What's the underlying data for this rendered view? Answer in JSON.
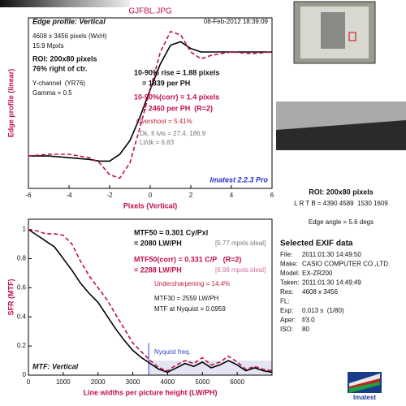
{
  "header": {
    "title": "GJFBL.JPG"
  },
  "chart_data": [
    {
      "type": "line",
      "ylabel": "Edge profile (linear)",
      "xlabel": "Pixels (Vertical)",
      "xlim": [
        -6,
        6
      ],
      "ylim": [
        0,
        1
      ],
      "xticks": [
        -6,
        -4,
        -2,
        0,
        2,
        4,
        6
      ],
      "x": [
        -6,
        -5,
        -4,
        -3,
        -2.5,
        -2,
        -1.5,
        -1,
        -0.5,
        0,
        0.5,
        1,
        1.5,
        2,
        2.5,
        3,
        4,
        5,
        6
      ],
      "series": [
        {
          "color": "#000000",
          "dashed": false,
          "values": [
            0.19,
            0.19,
            0.18,
            0.17,
            0.16,
            0.16,
            0.2,
            0.28,
            0.42,
            0.58,
            0.73,
            0.84,
            0.86,
            0.82,
            0.8,
            0.8,
            0.8,
            0.8,
            0.8
          ]
        },
        {
          "color": "#c0104a",
          "dashed": true,
          "values": [
            0.19,
            0.2,
            0.2,
            0.18,
            0.15,
            0.08,
            0.06,
            0.15,
            0.36,
            0.58,
            0.8,
            0.92,
            0.9,
            0.8,
            0.76,
            0.78,
            0.8,
            0.79,
            0.8
          ]
        }
      ],
      "annotations": [
        "Edge profile: Vertical",
        "08-Feb-2012 18:39:09",
        "4608 x 3456 pixels (WxH)",
        "15.9 Mpxls",
        "ROI: 200x80 pixels",
        "76% right of ctr.",
        "Y-channel  (YR76)",
        "Gamma = 0.5",
        "10-90% rise = 1.88 pixels",
        "= 1839 per PH",
        "10-90%(corr) = 1.4 pixels",
        "= 2460 per PH  (R=2)",
        "Overshoot = 5.41%",
        "Dk, lt lvls = 27.4, 186.9",
        "Lt/dk = 6.83",
        "Imatest 2.2.3 Pro"
      ]
    },
    {
      "type": "line",
      "ylabel": "SFR (MTF)",
      "xlabel": "Line widths per picture height (LW/PH)",
      "xlim": [
        0,
        7000
      ],
      "ylim": [
        0,
        1.07
      ],
      "xticks": [
        0,
        1000,
        2000,
        3000,
        4000,
        5000,
        6000
      ],
      "yticks": [
        0,
        0.2,
        0.4,
        0.6,
        0.8,
        1
      ],
      "nyquist": 3456,
      "x": [
        0,
        250,
        500,
        750,
        1000,
        1250,
        1500,
        1750,
        2000,
        2250,
        2500,
        2750,
        3000,
        3250,
        3500,
        3750,
        4000,
        4250,
        4500,
        4750,
        5000,
        5250,
        5500,
        5750,
        6000,
        6250,
        6500,
        6750,
        7000
      ],
      "series": [
        {
          "color": "#000000",
          "dashed": false,
          "values": [
            1.0,
            0.96,
            0.92,
            0.88,
            0.8,
            0.72,
            0.63,
            0.56,
            0.5,
            0.41,
            0.32,
            0.24,
            0.17,
            0.12,
            0.08,
            0.04,
            0.02,
            0.05,
            0.08,
            0.06,
            0.09,
            0.05,
            0.07,
            0.1,
            0.07,
            0.03,
            0.05,
            0.03,
            0.02
          ]
        },
        {
          "color": "#c0104a",
          "dashed": true,
          "values": [
            1.0,
            0.99,
            0.97,
            0.97,
            0.96,
            0.9,
            0.78,
            0.68,
            0.6,
            0.52,
            0.42,
            0.32,
            0.22,
            0.16,
            0.1,
            0.05,
            0.03,
            0.07,
            0.1,
            0.08,
            0.12,
            0.07,
            0.09,
            0.13,
            0.09,
            0.04,
            0.06,
            0.04,
            0.03
          ]
        }
      ],
      "annotations": [
        "MTF50 = 0.301 Cy/Pxl",
        "= 2080 LW/PH",
        "[5.77 mpxls ideal]",
        "MTF50(corr) = 0.331 C/P   (R=2)",
        "= 2288 LW/PH",
        "[6.98 mpxls ideal]",
        "Undersharpening = 14.4%",
        "MTF30 = 2559 LW/PH",
        "MTF at Nyquist = 0.0959",
        "Nyquist freq.",
        "MTF: Vertical"
      ]
    }
  ],
  "side_panel": {
    "roi": "ROI: 200x80 pixels",
    "roi_coords": "L R T B = 4390 4589  1530 1609",
    "edge_angle": "Edge angle = 5.6 degs",
    "exif_title": "Selected EXIF data",
    "exif": [
      [
        "File:",
        "2011:01:30 14:49:50"
      ],
      [
        "Make:",
        "CASIO COMPUTER CO.,LTD."
      ],
      [
        "Model:",
        "EX-ZR200"
      ],
      [
        "Taken:",
        "2011:01:30 14:49:49"
      ],
      [
        "Res:",
        "4608 x 3456"
      ],
      [
        "FL:",
        ""
      ],
      [
        "Exp:",
        "0.013 s  (1/80)"
      ],
      [
        "Aper:",
        "f/3.0"
      ],
      [
        "ISO:",
        "80"
      ]
    ],
    "logo": "Imatest"
  }
}
